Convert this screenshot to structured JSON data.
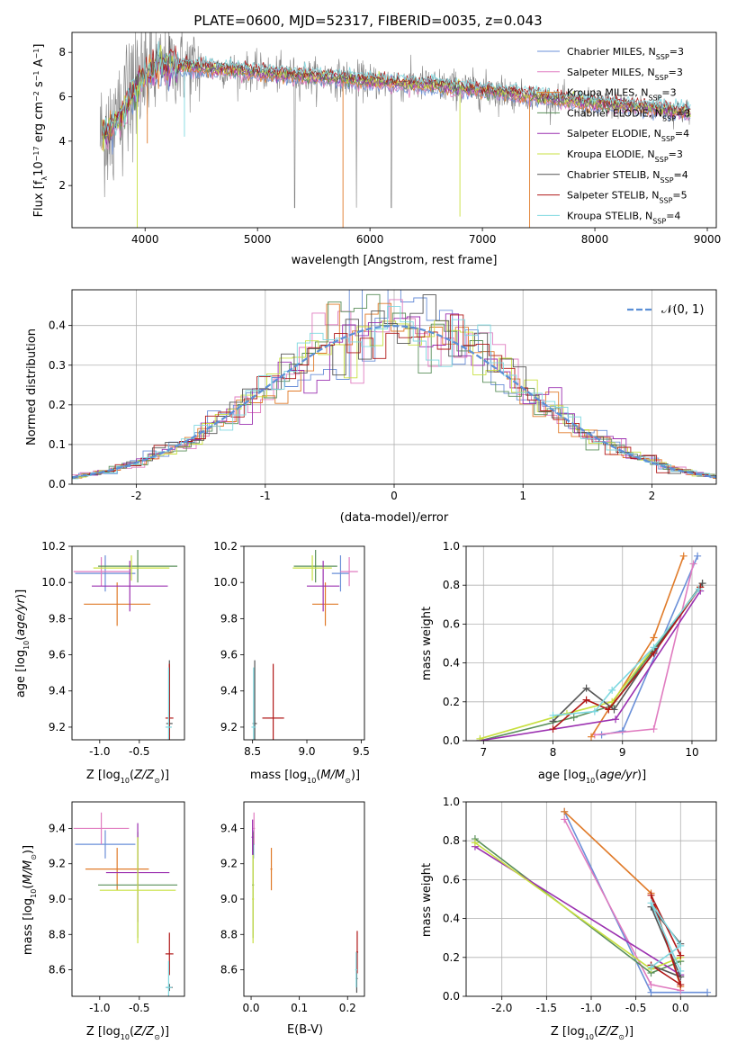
{
  "figure_title": "PLATE=0600, MJD=52317, FIBERID=0035, z=0.043",
  "colors": {
    "Chabrier MILES": "#6a8fd8",
    "Salpeter MILES": "#e07cc0",
    "Kroupa MILES": "#e07b2a",
    "Chabrier ELODIE": "#5a8f5a",
    "Salpeter ELODIE": "#9b30b0",
    "Kroupa ELODIE": "#c8e040",
    "Chabrier STELIB": "#555555",
    "Salpeter STELIB": "#b01818",
    "Kroupa STELIB": "#7fd8e0",
    "data": "#808080",
    "gaussian": "#5b8fd6"
  },
  "chart_data": [
    {
      "id": "spectrum",
      "type": "line",
      "title": "PLATE=0600, MJD=52317, FIBERID=0035, z=0.043",
      "xlabel": "wavelength [Angstrom, rest frame]",
      "ylabel": "Flux [f_λ 10^-17 erg cm^-2 s^-1 A^-1]",
      "xlim": [
        3350,
        9080
      ],
      "ylim": [
        0.1,
        8.9
      ],
      "xticks": [
        4000,
        5000,
        6000,
        7000,
        8000,
        9000
      ],
      "yticks": [
        2,
        4,
        6,
        8
      ],
      "legend_loc": "upper right",
      "legend": [
        {
          "base": "Chabrier MILES, N",
          "sub": "SSP",
          "tail": "=3"
        },
        {
          "base": "Salpeter MILES, N",
          "sub": "SSP",
          "tail": "=3"
        },
        {
          "base": "Kroupa MILES, N",
          "sub": "SSP",
          "tail": "=3"
        },
        {
          "base": "Chabrier ELODIE, N",
          "sub": "SSP",
          "tail": "=3"
        },
        {
          "base": "Salpeter ELODIE, N",
          "sub": "SSP",
          "tail": "=4"
        },
        {
          "base": "Kroupa ELODIE, N",
          "sub": "SSP",
          "tail": "=3"
        },
        {
          "base": "Chabrier STELIB, N",
          "sub": "SSP",
          "tail": "=4"
        },
        {
          "base": "Salpeter STELIB, N",
          "sub": "SSP",
          "tail": "=5"
        },
        {
          "base": "Kroupa STELIB, N",
          "sub": "SSP",
          "tail": "=4"
        }
      ],
      "continuum": [
        [
          3600,
          4.2
        ],
        [
          3700,
          4.6
        ],
        [
          3800,
          5.2
        ],
        [
          3900,
          6.3
        ],
        [
          4000,
          7.0
        ],
        [
          4100,
          7.3
        ],
        [
          4300,
          7.4
        ],
        [
          4500,
          7.3
        ],
        [
          4800,
          7.2
        ],
        [
          5000,
          7.1
        ],
        [
          5200,
          7.0
        ],
        [
          5500,
          6.9
        ],
        [
          5800,
          6.8
        ],
        [
          6000,
          6.7
        ],
        [
          6300,
          6.6
        ],
        [
          6600,
          6.5
        ],
        [
          6900,
          6.35
        ],
        [
          7200,
          6.2
        ],
        [
          7500,
          6.0
        ],
        [
          7800,
          5.8
        ],
        [
          8000,
          5.7
        ],
        [
          8300,
          5.6
        ],
        [
          8600,
          5.45
        ],
        [
          8850,
          5.3
        ]
      ]
    },
    {
      "id": "residuals",
      "type": "line",
      "xlabel": "(data-model)/error",
      "ylabel": "Normed distribution",
      "xlim": [
        -2.5,
        2.5
      ],
      "ylim": [
        0.0,
        0.49
      ],
      "xticks": [
        -2,
        -1,
        0,
        1,
        2
      ],
      "yticks": [
        0.0,
        0.1,
        0.2,
        0.3,
        0.4
      ],
      "legend_label": "𝒩(0, 1)",
      "bin_width": 0.1
    },
    {
      "id": "age_vs_Z",
      "type": "scatter",
      "xlabel": "Z [log10(Z/Z⊙)]",
      "ylabel": "age [log10(age/yr)]",
      "xlim": [
        -1.35,
        0.07
      ],
      "ylim": [
        9.13,
        10.2
      ],
      "xticks": [
        -1.0,
        -0.5
      ],
      "yticks": [
        9.2,
        9.4,
        9.6,
        9.8,
        10.0,
        10.2
      ],
      "points": [
        {
          "model": "Chabrier MILES",
          "x": -0.93,
          "xerr": 0.38,
          "y": 10.05,
          "yerr": 0.1
        },
        {
          "model": "Salpeter MILES",
          "x": -0.98,
          "xerr": 0.35,
          "y": 10.06,
          "yerr": 0.08
        },
        {
          "model": "Kroupa MILES",
          "x": -0.78,
          "xerr": 0.42,
          "y": 9.88,
          "yerr": 0.12
        },
        {
          "model": "Chabrier ELODIE",
          "x": -0.52,
          "xerr": 0.5,
          "y": 10.09,
          "yerr": 0.09
        },
        {
          "model": "Salpeter ELODIE",
          "x": -0.62,
          "xerr": 0.48,
          "y": 9.98,
          "yerr": 0.14
        },
        {
          "model": "Kroupa ELODIE",
          "x": -0.6,
          "xerr": 0.48,
          "y": 10.08,
          "yerr": 0.07
        },
        {
          "model": "Chabrier STELIB",
          "x": -0.12,
          "xerr": 0.04,
          "y": 9.22,
          "yerr": 0.35
        },
        {
          "model": "Salpeter STELIB",
          "x": -0.12,
          "xerr": 0.05,
          "y": 9.25,
          "yerr": 0.3
        },
        {
          "model": "Kroupa STELIB",
          "x": -0.13,
          "xerr": 0.04,
          "y": 9.2,
          "yerr": 0.33
        }
      ]
    },
    {
      "id": "age_vs_mass",
      "type": "scatter",
      "xlabel": "mass [log10(M/M⊙)]",
      "ylabel": "",
      "xlim": [
        8.42,
        9.53
      ],
      "ylim": [
        9.13,
        10.2
      ],
      "xticks": [
        8.5,
        9.0,
        9.5
      ],
      "yticks": [
        9.2,
        9.4,
        9.6,
        9.8,
        10.0,
        10.2
      ],
      "points": [
        {
          "model": "Chabrier MILES",
          "x": 9.31,
          "xerr": 0.08,
          "y": 10.05,
          "yerr": 0.1
        },
        {
          "model": "Salpeter MILES",
          "x": 9.39,
          "xerr": 0.08,
          "y": 10.06,
          "yerr": 0.08
        },
        {
          "model": "Kroupa MILES",
          "x": 9.17,
          "xerr": 0.12,
          "y": 9.88,
          "yerr": 0.12
        },
        {
          "model": "Chabrier ELODIE",
          "x": 9.08,
          "xerr": 0.2,
          "y": 10.09,
          "yerr": 0.09
        },
        {
          "model": "Salpeter ELODIE",
          "x": 9.15,
          "xerr": 0.15,
          "y": 9.98,
          "yerr": 0.14
        },
        {
          "model": "Kroupa ELODIE",
          "x": 9.05,
          "xerr": 0.18,
          "y": 10.08,
          "yerr": 0.07
        },
        {
          "model": "Chabrier STELIB",
          "x": 8.52,
          "xerr": 0.02,
          "y": 9.22,
          "yerr": 0.35
        },
        {
          "model": "Salpeter STELIB",
          "x": 8.69,
          "xerr": 0.1,
          "y": 9.25,
          "yerr": 0.3
        },
        {
          "model": "Kroupa STELIB",
          "x": 8.51,
          "xerr": 0.02,
          "y": 9.2,
          "yerr": 0.33
        }
      ]
    },
    {
      "id": "mass_weight_vs_age",
      "type": "line",
      "xlabel": "age [log10(age/yr)]",
      "ylabel": "mass weight",
      "xlim": [
        6.75,
        10.35
      ],
      "ylim": [
        0.0,
        1.0
      ],
      "xticks": [
        7,
        8,
        9,
        10
      ],
      "yticks": [
        0.0,
        0.2,
        0.4,
        0.6,
        0.8,
        1.0
      ],
      "series": [
        {
          "model": "Chabrier MILES",
          "x": [
            8.7,
            9.0,
            10.08
          ],
          "y": [
            0.03,
            0.05,
            0.95
          ]
        },
        {
          "model": "Salpeter MILES",
          "x": [
            8.6,
            9.45,
            10.02
          ],
          "y": [
            0.03,
            0.06,
            0.91
          ]
        },
        {
          "model": "Kroupa MILES",
          "x": [
            8.55,
            9.45,
            9.88
          ],
          "y": [
            0.02,
            0.53,
            0.95
          ]
        },
        {
          "model": "Chabrier ELODIE",
          "x": [
            6.95,
            8.3,
            8.85,
            10.15
          ],
          "y": [
            0.0,
            0.12,
            0.18,
            0.81
          ]
        },
        {
          "model": "Salpeter ELODIE",
          "x": [
            6.95,
            8.9,
            10.12
          ],
          "y": [
            0.0,
            0.11,
            0.77
          ]
        },
        {
          "model": "Kroupa ELODIE",
          "x": [
            6.95,
            8.2,
            8.85,
            10.12
          ],
          "y": [
            0.01,
            0.14,
            0.2,
            0.79
          ]
        },
        {
          "model": "Chabrier STELIB",
          "x": [
            8.0,
            8.48,
            8.88,
            9.45,
            10.15
          ],
          "y": [
            0.1,
            0.27,
            0.16,
            0.46,
            0.81
          ]
        },
        {
          "model": "Salpeter STELIB",
          "x": [
            8.0,
            8.48,
            8.8,
            9.45,
            10.12
          ],
          "y": [
            0.06,
            0.21,
            0.16,
            0.45,
            0.79
          ]
        },
        {
          "model": "Kroupa STELIB",
          "x": [
            8.0,
            8.6,
            8.85,
            9.45,
            10.1
          ],
          "y": [
            0.13,
            0.15,
            0.26,
            0.48,
            0.78
          ]
        }
      ]
    },
    {
      "id": "mass_vs_Z",
      "type": "scatter",
      "xlabel": "Z [log10(Z/Z⊙)]",
      "ylabel": "mass [log10(M/M⊙)]",
      "xlim": [
        -1.35,
        0.07
      ],
      "ylim": [
        8.45,
        9.55
      ],
      "xticks": [
        -1.0,
        -0.5
      ],
      "yticks": [
        8.6,
        8.8,
        9.0,
        9.2,
        9.4
      ],
      "points": [
        {
          "model": "Chabrier MILES",
          "x": -0.93,
          "xerr": 0.38,
          "y": 9.31,
          "yerr": 0.08
        },
        {
          "model": "Salpeter MILES",
          "x": -0.98,
          "xerr": 0.35,
          "y": 9.4,
          "yerr": 0.09
        },
        {
          "model": "Kroupa MILES",
          "x": -0.78,
          "xerr": 0.4,
          "y": 9.17,
          "yerr": 0.12
        },
        {
          "model": "Chabrier ELODIE",
          "x": -0.52,
          "xerr": 0.5,
          "y": 9.08,
          "yerr": 0.3
        },
        {
          "model": "Salpeter ELODIE",
          "x": -0.52,
          "xerr": 0.4,
          "y": 9.15,
          "yerr": 0.28
        },
        {
          "model": "Kroupa ELODIE",
          "x": -0.52,
          "xerr": 0.48,
          "y": 9.05,
          "yerr": 0.3
        },
        {
          "model": "Chabrier STELIB",
          "x": -0.12,
          "xerr": 0.04,
          "y": 8.5,
          "yerr": 0.02
        },
        {
          "model": "Salpeter STELIB",
          "x": -0.12,
          "xerr": 0.05,
          "y": 8.69,
          "yerr": 0.12
        },
        {
          "model": "Kroupa STELIB",
          "x": -0.13,
          "xerr": 0.04,
          "y": 8.5,
          "yerr": 0.15
        }
      ]
    },
    {
      "id": "mass_vs_ebv",
      "type": "scatter",
      "xlabel": "E(B-V)",
      "ylabel": "",
      "xlim": [
        -0.015,
        0.235
      ],
      "ylim": [
        8.45,
        9.55
      ],
      "xticks": [
        0.0,
        0.1,
        0.2
      ],
      "yticks": [
        8.6,
        8.8,
        9.0,
        9.2,
        9.4
      ],
      "points": [
        {
          "model": "Chabrier MILES",
          "x": 0.005,
          "xerr": 0.002,
          "y": 9.31,
          "yerr": 0.08
        },
        {
          "model": "Salpeter MILES",
          "x": 0.006,
          "xerr": 0.002,
          "y": 9.4,
          "yerr": 0.09
        },
        {
          "model": "Kroupa MILES",
          "x": 0.042,
          "xerr": 0.002,
          "y": 9.17,
          "yerr": 0.12
        },
        {
          "model": "Chabrier ELODIE",
          "x": 0.004,
          "xerr": 0.002,
          "y": 9.08,
          "yerr": 0.3
        },
        {
          "model": "Salpeter ELODIE",
          "x": 0.003,
          "xerr": 0.002,
          "y": 9.35,
          "yerr": 0.1
        },
        {
          "model": "Kroupa ELODIE",
          "x": 0.004,
          "xerr": 0.002,
          "y": 9.0,
          "yerr": 0.25
        },
        {
          "model": "Chabrier STELIB",
          "x": 0.219,
          "xerr": 0.002,
          "y": 8.55,
          "yerr": 0.08
        },
        {
          "model": "Salpeter STELIB",
          "x": 0.22,
          "xerr": 0.002,
          "y": 8.7,
          "yerr": 0.12
        },
        {
          "model": "Kroupa STELIB",
          "x": 0.218,
          "xerr": 0.002,
          "y": 8.6,
          "yerr": 0.1
        }
      ]
    },
    {
      "id": "mass_weight_vs_Z",
      "type": "line",
      "xlabel": "Z [log10(Z/Z⊙)]",
      "ylabel": "mass weight",
      "xlim": [
        -2.4,
        0.4
      ],
      "ylim": [
        0.0,
        1.0
      ],
      "xticks": [
        -2.0,
        -1.5,
        -1.0,
        -0.5,
        0.0
      ],
      "yticks": [
        0.0,
        0.2,
        0.4,
        0.6,
        0.8,
        1.0
      ],
      "series": [
        {
          "model": "Chabrier MILES",
          "x": [
            0.3,
            -0.33,
            -1.3
          ],
          "y": [
            0.02,
            0.02,
            0.95
          ]
        },
        {
          "model": "Salpeter MILES",
          "x": [
            0.0,
            -0.33,
            -1.3
          ],
          "y": [
            0.03,
            0.06,
            0.91
          ]
        },
        {
          "model": "Kroupa MILES",
          "x": [
            0.0,
            -0.33,
            -1.3
          ],
          "y": [
            0.05,
            0.53,
            0.95
          ]
        },
        {
          "model": "Chabrier ELODIE",
          "x": [
            0.0,
            -0.33,
            -2.3
          ],
          "y": [
            0.18,
            0.12,
            0.81
          ]
        },
        {
          "model": "Salpeter ELODIE",
          "x": [
            0.0,
            -2.3
          ],
          "y": [
            0.11,
            0.77
          ]
        },
        {
          "model": "Kroupa ELODIE",
          "x": [
            0.0,
            -0.33,
            -2.3
          ],
          "y": [
            0.2,
            0.14,
            0.79
          ]
        },
        {
          "model": "Chabrier STELIB",
          "x": [
            0.0,
            -0.33,
            0.0,
            -0.33
          ],
          "y": [
            0.27,
            0.46,
            0.1,
            0.16
          ]
        },
        {
          "model": "Salpeter STELIB",
          "x": [
            0.0,
            -0.33,
            0.0,
            -0.33
          ],
          "y": [
            0.21,
            0.52,
            0.06,
            0.16
          ]
        },
        {
          "model": "Kroupa STELIB",
          "x": [
            0.0,
            -0.33,
            0.0,
            -0.33
          ],
          "y": [
            0.13,
            0.48,
            0.26,
            0.15
          ]
        }
      ]
    }
  ]
}
